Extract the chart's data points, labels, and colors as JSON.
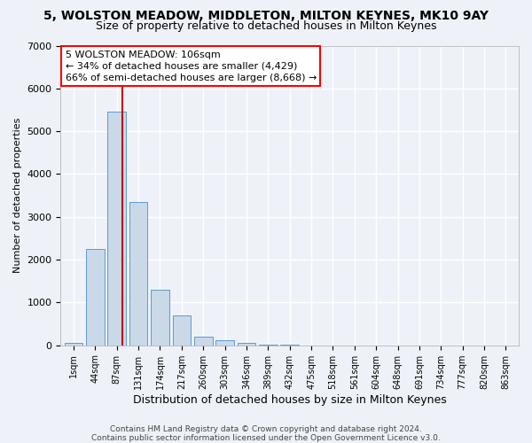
{
  "title": "5, WOLSTON MEADOW, MIDDLETON, MILTON KEYNES, MK10 9AY",
  "subtitle": "Size of property relative to detached houses in Milton Keynes",
  "xlabel": "Distribution of detached houses by size in Milton Keynes",
  "ylabel": "Number of detached properties",
  "footer_line1": "Contains HM Land Registry data © Crown copyright and database right 2024.",
  "footer_line2": "Contains public sector information licensed under the Open Government Licence v3.0.",
  "bar_labels": [
    "1sqm",
    "44sqm",
    "87sqm",
    "131sqm",
    "174sqm",
    "217sqm",
    "260sqm",
    "303sqm",
    "346sqm",
    "389sqm",
    "432sqm",
    "475sqm",
    "518sqm",
    "561sqm",
    "604sqm",
    "648sqm",
    "691sqm",
    "734sqm",
    "777sqm",
    "820sqm",
    "863sqm"
  ],
  "bar_values": [
    50,
    2250,
    5450,
    3350,
    1300,
    700,
    200,
    120,
    50,
    10,
    5,
    2,
    1,
    0,
    0,
    0,
    0,
    0,
    0,
    0,
    0
  ],
  "bar_color": "#c9d9e8",
  "bar_edgecolor": "#5b9bd5",
  "ylim": [
    0,
    7000
  ],
  "yticks": [
    0,
    1000,
    2000,
    3000,
    4000,
    5000,
    6000,
    7000
  ],
  "background_color": "#eef2f8",
  "grid_color": "#ffffff",
  "title_fontsize": 10,
  "subtitle_fontsize": 9,
  "xlabel_fontsize": 9,
  "ylabel_fontsize": 8,
  "vline_color": "#cc0000",
  "vline_x": 2.27,
  "annotation_line1": "5 WOLSTON MEADOW: 106sqm",
  "annotation_line2": "← 34% of detached houses are smaller (4,429)",
  "annotation_line3": "66% of semi-detached houses are larger (8,668) →",
  "annotation_fontsize": 8,
  "footer_fontsize": 6.5
}
